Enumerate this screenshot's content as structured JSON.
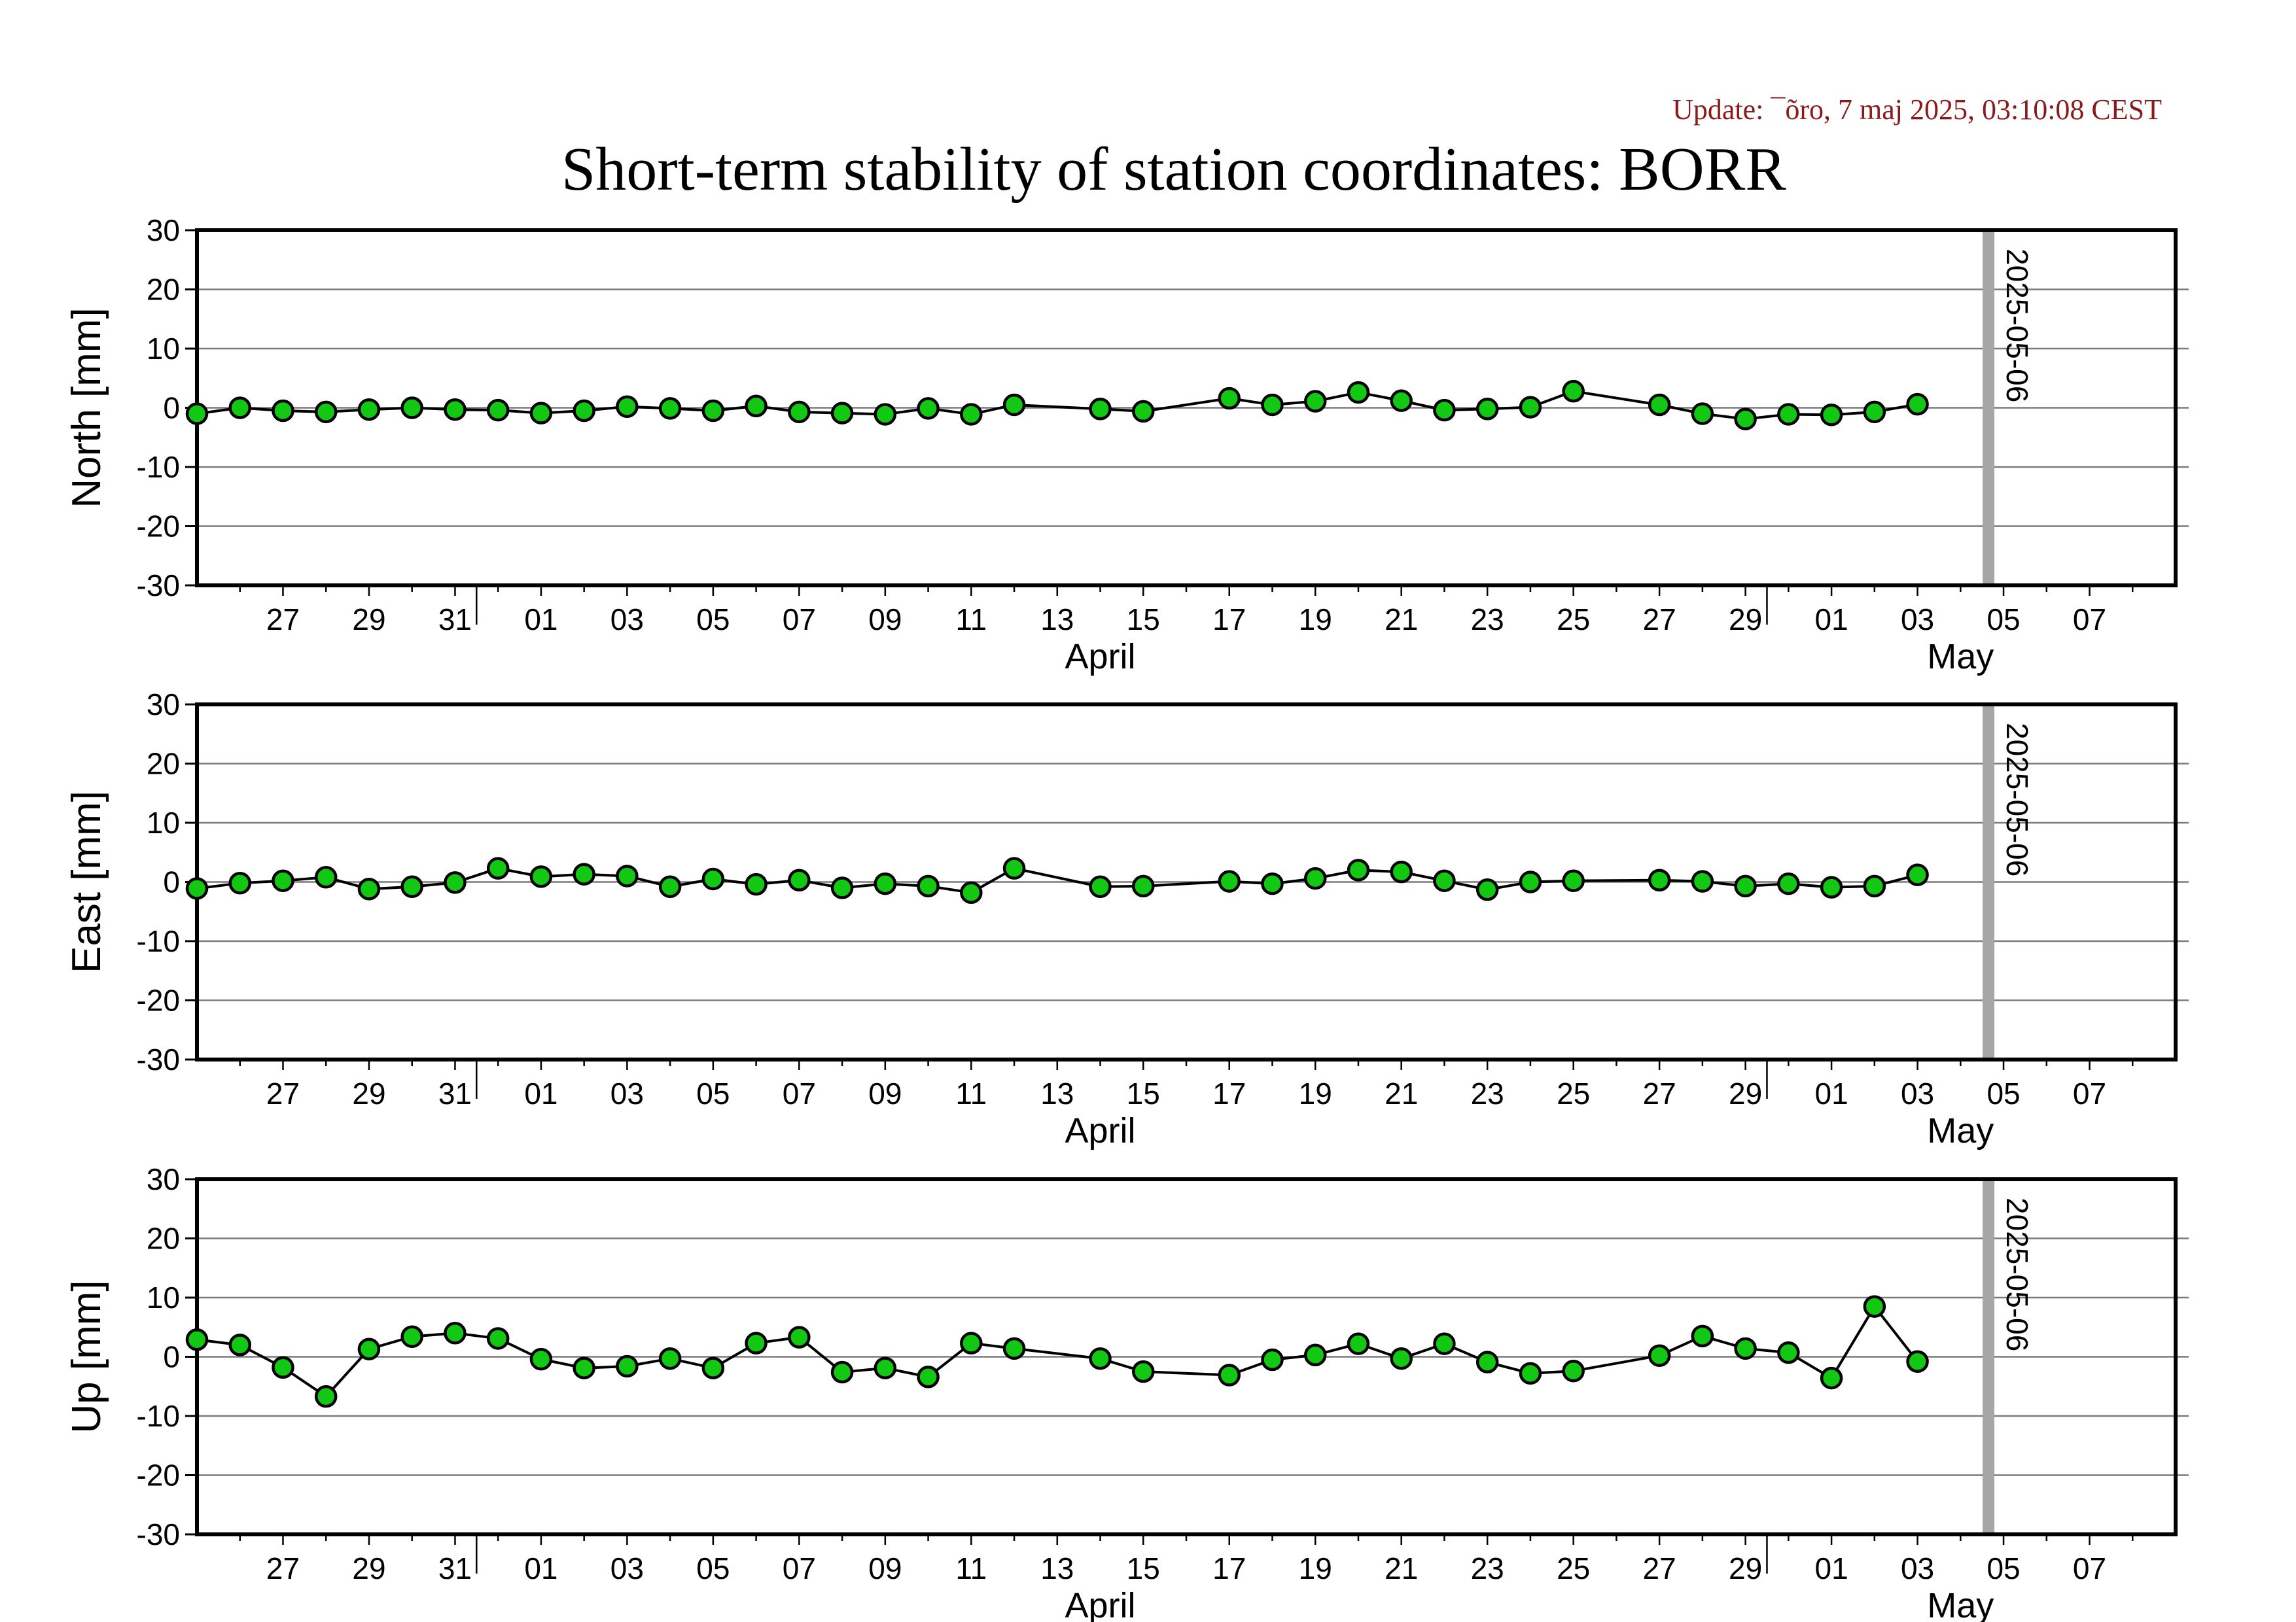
{
  "update_text": "Update: ¯õro, 7 maj 2025, 03:10:08 CEST",
  "title": "Short-term stability of station coordinates: BORR",
  "colors": {
    "point_fill": "#12c812",
    "point_stroke": "#000000",
    "line": "#000000",
    "gridline": "#7a7a7a",
    "marker_line": "#a6a6a6",
    "update_text": "#8b1a1a",
    "frame": "#000000"
  },
  "icons": {
    "marker": "filled-circle"
  },
  "chart_data": [
    {
      "type": "scatter",
      "panel": "north",
      "ylabel": "North [mm]",
      "ylim": [
        -30,
        30
      ],
      "yticks": [
        30,
        20,
        10,
        0,
        -10,
        -20,
        -30
      ],
      "grid": true,
      "xlim": [
        "2025-03-25",
        "2025-05-10"
      ],
      "xtick_labels": [
        "27",
        "29",
        "31",
        "01",
        "03",
        "05",
        "07",
        "09",
        "11",
        "13",
        "15",
        "17",
        "19",
        "21",
        "23",
        "25",
        "27",
        "29",
        "01",
        "03",
        "05",
        "07",
        "09"
      ],
      "month_labels": [
        "April",
        "May"
      ],
      "marker_label": "2025-05-06",
      "x": [
        "2025-03-25",
        "2025-03-26",
        "2025-03-27",
        "2025-03-28",
        "2025-03-29",
        "2025-03-30",
        "2025-03-31",
        "2025-04-01",
        "2025-04-02",
        "2025-04-03",
        "2025-04-04",
        "2025-04-05",
        "2025-04-06",
        "2025-04-07",
        "2025-04-08",
        "2025-04-09",
        "2025-04-10",
        "2025-04-11",
        "2025-04-12",
        "2025-04-13",
        "2025-04-15",
        "2025-04-16",
        "2025-04-18",
        "2025-04-19",
        "2025-04-20",
        "2025-04-21",
        "2025-04-22",
        "2025-04-23",
        "2025-04-24",
        "2025-04-25",
        "2025-04-26",
        "2025-04-28",
        "2025-04-29",
        "2025-04-30",
        "2025-05-01",
        "2025-05-02",
        "2025-05-03",
        "2025-05-04"
      ],
      "values": [
        -1.0,
        0.0,
        -0.5,
        -0.7,
        -0.3,
        0.0,
        -0.3,
        -0.4,
        -0.9,
        -0.5,
        0.2,
        -0.1,
        -0.5,
        0.3,
        -0.7,
        -0.9,
        -1.1,
        -0.1,
        -1.1,
        0.5,
        -0.2,
        -0.6,
        1.6,
        0.5,
        1.1,
        2.6,
        1.2,
        -0.4,
        -0.2,
        0.1,
        2.8,
        0.5,
        -1.0,
        -1.9,
        -1.1,
        -1.2,
        -0.7,
        0.6
      ]
    },
    {
      "type": "scatter",
      "panel": "east",
      "ylabel": "East [mm]",
      "ylim": [
        -30,
        30
      ],
      "yticks": [
        30,
        20,
        10,
        0,
        -10,
        -20,
        -30
      ],
      "grid": true,
      "xlim": [
        "2025-03-25",
        "2025-05-10"
      ],
      "xtick_labels": [
        "27",
        "29",
        "31",
        "01",
        "03",
        "05",
        "07",
        "09",
        "11",
        "13",
        "15",
        "17",
        "19",
        "21",
        "23",
        "25",
        "27",
        "29",
        "01",
        "03",
        "05",
        "07",
        "09"
      ],
      "month_labels": [
        "April",
        "May"
      ],
      "marker_label": "2025-05-06",
      "x": [
        "2025-03-25",
        "2025-03-26",
        "2025-03-27",
        "2025-03-28",
        "2025-03-29",
        "2025-03-30",
        "2025-03-31",
        "2025-04-01",
        "2025-04-02",
        "2025-04-03",
        "2025-04-04",
        "2025-04-05",
        "2025-04-06",
        "2025-04-07",
        "2025-04-08",
        "2025-04-09",
        "2025-04-10",
        "2025-04-11",
        "2025-04-12",
        "2025-04-13",
        "2025-04-15",
        "2025-04-16",
        "2025-04-18",
        "2025-04-19",
        "2025-04-20",
        "2025-04-21",
        "2025-04-22",
        "2025-04-23",
        "2025-04-24",
        "2025-04-25",
        "2025-04-26",
        "2025-04-28",
        "2025-04-29",
        "2025-04-30",
        "2025-05-01",
        "2025-05-02",
        "2025-05-03",
        "2025-05-04"
      ],
      "values": [
        -1.1,
        -0.2,
        0.2,
        0.8,
        -1.2,
        -0.8,
        -0.1,
        2.3,
        0.9,
        1.3,
        1.0,
        -0.8,
        0.5,
        -0.4,
        0.3,
        -1.0,
        -0.3,
        -0.7,
        -1.8,
        2.3,
        -0.8,
        -0.7,
        0.1,
        -0.3,
        0.6,
        2.0,
        1.7,
        0.2,
        -1.3,
        0.0,
        0.2,
        0.3,
        0.1,
        -0.7,
        -0.3,
        -0.9,
        -0.7,
        1.2
      ]
    },
    {
      "type": "scatter",
      "panel": "up",
      "ylabel": "Up [mm]",
      "ylim": [
        -30,
        30
      ],
      "yticks": [
        30,
        20,
        10,
        0,
        -10,
        -20,
        -30
      ],
      "grid": true,
      "xlim": [
        "2025-03-25",
        "2025-05-10"
      ],
      "xtick_labels": [
        "27",
        "29",
        "31",
        "01",
        "03",
        "05",
        "07",
        "09",
        "11",
        "13",
        "15",
        "17",
        "19",
        "21",
        "23",
        "25",
        "27",
        "29",
        "01",
        "03",
        "05",
        "07",
        "09"
      ],
      "month_labels": [
        "April",
        "May"
      ],
      "marker_label": "2025-05-06",
      "x": [
        "2025-03-25",
        "2025-03-26",
        "2025-03-27",
        "2025-03-28",
        "2025-03-29",
        "2025-03-30",
        "2025-03-31",
        "2025-04-01",
        "2025-04-02",
        "2025-04-03",
        "2025-04-04",
        "2025-04-05",
        "2025-04-06",
        "2025-04-07",
        "2025-04-08",
        "2025-04-09",
        "2025-04-10",
        "2025-04-11",
        "2025-04-12",
        "2025-04-13",
        "2025-04-15",
        "2025-04-16",
        "2025-04-18",
        "2025-04-19",
        "2025-04-20",
        "2025-04-21",
        "2025-04-22",
        "2025-04-23",
        "2025-04-24",
        "2025-04-25",
        "2025-04-26",
        "2025-04-28",
        "2025-04-29",
        "2025-04-30",
        "2025-05-01",
        "2025-05-02",
        "2025-05-03",
        "2025-05-04"
      ],
      "values": [
        2.9,
        2.0,
        -1.8,
        -6.7,
        1.3,
        3.4,
        4.0,
        3.1,
        -0.4,
        -1.9,
        -1.6,
        -0.3,
        -1.9,
        2.3,
        3.3,
        -2.6,
        -1.9,
        -3.4,
        2.3,
        1.4,
        -0.3,
        -2.5,
        -3.1,
        -0.5,
        0.3,
        2.2,
        -0.3,
        2.2,
        -0.9,
        -2.8,
        -2.4,
        0.2,
        3.5,
        1.4,
        0.7,
        -3.6,
        8.5,
        -0.8
      ]
    }
  ]
}
